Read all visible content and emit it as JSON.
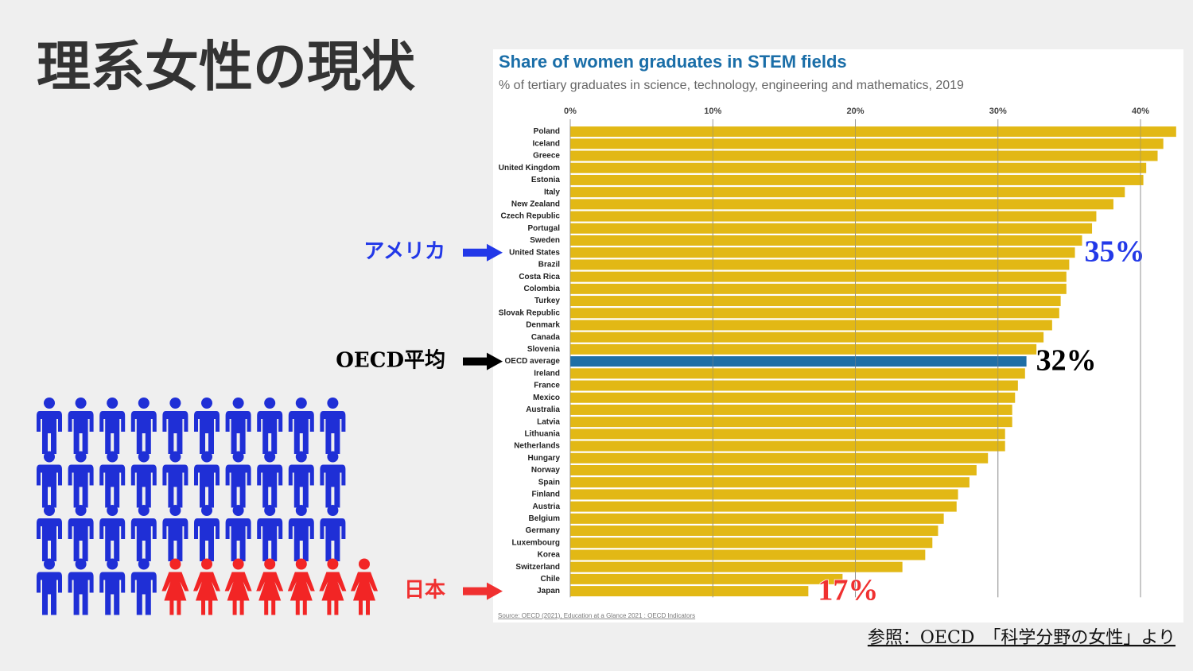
{
  "slide_title": "理系女性の現状",
  "reference": "参照：OECD　「科学分野の女性」より",
  "pictogram": {
    "men": 34,
    "women": 7,
    "men_color": "#1f2fd6",
    "women_color": "#f22525"
  },
  "chart_data": {
    "type": "bar",
    "orientation": "horizontal",
    "title": "Share of women graduates in STEM fields",
    "subtitle": "% of tertiary graduates in science, technology, engineering and mathematics, 2019",
    "source": "Source: OECD (2021), Education at a Glance 2021 : OECD Indicators",
    "categories": [
      "Poland",
      "Iceland",
      "Greece",
      "United Kingdom",
      "Estonia",
      "Italy",
      "New Zealand",
      "Czech Republic",
      "Portugal",
      "Sweden",
      "United States",
      "Brazil",
      "Costa Rica",
      "Colombia",
      "Turkey",
      "Slovak Republic",
      "Denmark",
      "Canada",
      "Slovenia",
      "OECD average",
      "Ireland",
      "France",
      "Mexico",
      "Australia",
      "Latvia",
      "Lithuania",
      "Netherlands",
      "Hungary",
      "Norway",
      "Spain",
      "Finland",
      "Austria",
      "Belgium",
      "Germany",
      "Luxembourg",
      "Korea",
      "Switzerland",
      "Chile",
      "Japan"
    ],
    "values": [
      42.5,
      41.6,
      41.2,
      40.4,
      40.2,
      38.9,
      38.1,
      36.9,
      36.6,
      35.9,
      35.4,
      35.0,
      34.8,
      34.8,
      34.4,
      34.3,
      33.8,
      33.2,
      32.7,
      32.0,
      31.9,
      31.4,
      31.2,
      31.0,
      31.0,
      30.5,
      30.5,
      29.3,
      28.5,
      28.0,
      27.2,
      27.1,
      26.2,
      25.8,
      25.4,
      24.9,
      23.3,
      19.1,
      16.7
    ],
    "value_labels": [
      null,
      null,
      null,
      null,
      null,
      null,
      null,
      null,
      null,
      null,
      "35%",
      null,
      null,
      null,
      null,
      null,
      null,
      null,
      null,
      "32%",
      null,
      null,
      null,
      null,
      null,
      null,
      null,
      null,
      null,
      null,
      null,
      null,
      null,
      null,
      null,
      null,
      null,
      null,
      "17%"
    ],
    "callouts": [
      null,
      null,
      null,
      null,
      null,
      null,
      null,
      null,
      null,
      null,
      {
        "label": "アメリカ",
        "color": "#2238e8"
      },
      null,
      null,
      null,
      null,
      null,
      null,
      null,
      null,
      {
        "label": "OECD平均",
        "color": "#000000"
      },
      null,
      null,
      null,
      null,
      null,
      null,
      null,
      null,
      null,
      null,
      null,
      null,
      null,
      null,
      null,
      null,
      null,
      null,
      {
        "label": "日本",
        "color": "#f03030"
      }
    ],
    "colors": [
      "#e2b815",
      "#e2b815",
      "#e2b815",
      "#e2b815",
      "#e2b815",
      "#e2b815",
      "#e2b815",
      "#e2b815",
      "#e2b815",
      "#e2b815",
      "#e2b815",
      "#e2b815",
      "#e2b815",
      "#e2b815",
      "#e2b815",
      "#e2b815",
      "#e2b815",
      "#e2b815",
      "#e2b815",
      "#1f6fa6",
      "#e2b815",
      "#e2b815",
      "#e2b815",
      "#e2b815",
      "#e2b815",
      "#e2b815",
      "#e2b815",
      "#e2b815",
      "#e2b815",
      "#e2b815",
      "#e2b815",
      "#e2b815",
      "#e2b815",
      "#e2b815",
      "#e2b815",
      "#e2b815",
      "#e2b815",
      "#e2b815",
      "#e2b815"
    ],
    "xlim": [
      0,
      42.6
    ],
    "xticks": [
      {
        "value": 0,
        "label": "0%"
      },
      {
        "value": 10,
        "label": "10%"
      },
      {
        "value": 20,
        "label": "20%"
      },
      {
        "value": 30,
        "label": "30%"
      },
      {
        "value": 40,
        "label": "40%"
      }
    ],
    "grid": true
  }
}
